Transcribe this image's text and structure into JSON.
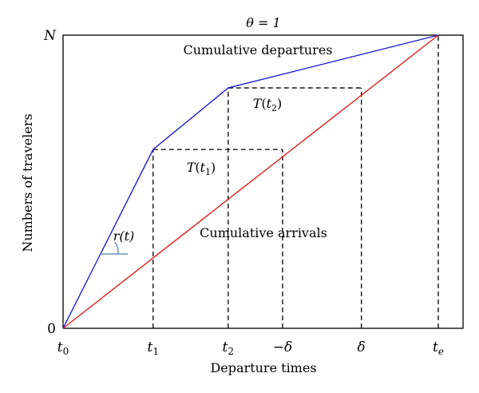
{
  "chart_data": {
    "type": "line",
    "title": "θ = 1",
    "xlabel": "Departure times",
    "ylabel": "Numbers of travelers",
    "x_ticks": [
      "t0",
      "t1",
      "t2",
      "−δ",
      "δ",
      "te"
    ],
    "y_ticks": [
      "0",
      "N"
    ],
    "xlim": [
      0,
      1
    ],
    "ylim": [
      0,
      1
    ],
    "series": [
      {
        "name": "Cumulative departures",
        "color": "#2020d0",
        "points": [
          [
            0,
            0
          ],
          [
            0.24,
            0.61
          ],
          [
            0.44,
            0.82
          ],
          [
            1,
            1
          ]
        ]
      },
      {
        "name": "Cumulative arrivals",
        "color": "#e02020",
        "points": [
          [
            0,
            0
          ],
          [
            1,
            1
          ]
        ]
      }
    ],
    "annotations": [
      {
        "text": "T(t1)",
        "name": "T-t1"
      },
      {
        "text": "T(t2)",
        "name": "T-t2"
      },
      {
        "text": "r(t)",
        "name": "r-t"
      }
    ],
    "guide_lines": [
      {
        "from": [
          0.24,
          0
        ],
        "to": [
          0.24,
          0.61
        ]
      },
      {
        "from": [
          0.24,
          0.61
        ],
        "to": [
          0.585,
          0.61
        ]
      },
      {
        "from": [
          0.585,
          0
        ],
        "to": [
          0.585,
          0.61
        ]
      },
      {
        "from": [
          0.44,
          0
        ],
        "to": [
          0.44,
          0.82
        ]
      },
      {
        "from": [
          0.44,
          0.82
        ],
        "to": [
          0.795,
          0.82
        ]
      },
      {
        "from": [
          0.795,
          0
        ],
        "to": [
          0.795,
          0.82
        ]
      },
      {
        "from": [
          1,
          0
        ],
        "to": [
          1,
          1
        ]
      }
    ]
  }
}
